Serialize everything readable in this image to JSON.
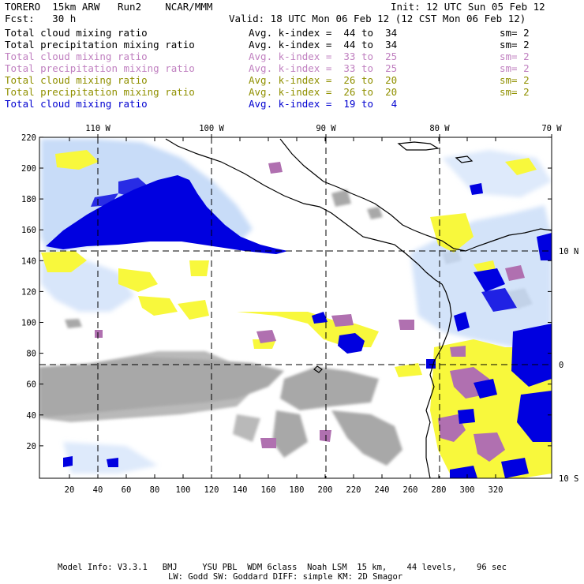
{
  "header": {
    "model": "TORERO  15km ARW   Run2    NCAR/MMM",
    "init": "Init: 12 UTC Sun 05 Feb 12",
    "fcst": "Fcst:   30 h",
    "valid": "Valid: 18 UTC Mon 06 Feb 12 (12 CST Mon 06 Feb 12)"
  },
  "fields": [
    {
      "name": "Total cloud mixing ratio",
      "avg": "Avg. k-index =  44 to  34",
      "sm": "sm= 2",
      "color": "#000000"
    },
    {
      "name": "Total precipitation mixing ratio",
      "avg": "Avg. k-index =  44 to  34",
      "sm": "sm= 2",
      "color": "#000000"
    },
    {
      "name": "Total cloud mixing ratio",
      "avg": "Avg. k-index =  33 to  25",
      "sm": "sm= 2",
      "color": "#c080c0"
    },
    {
      "name": "Total precipitation mixing ratio",
      "avg": "Avg. k-index =  33 to  25",
      "sm": "sm= 2",
      "color": "#c080c0"
    },
    {
      "name": "Total cloud mixing ratio",
      "avg": "Avg. k-index =  26 to  20",
      "sm": "sm= 2",
      "color": "#909000"
    },
    {
      "name": "Total precipitation mixing ratio",
      "avg": "Avg. k-index =  26 to  20",
      "sm": "sm= 2",
      "color": "#909000"
    },
    {
      "name": "Total cloud mixing ratio",
      "avg": "Avg. k-index =  19 to   4",
      "sm": "",
      "color": "#0000d0"
    }
  ],
  "map": {
    "lon_labels": [
      "110 W",
      "100 W",
      "90 W",
      "80 W",
      "70 W"
    ],
    "lat_labels": [
      "10 N",
      "0",
      "10 S"
    ],
    "y_ticks": [
      "220",
      "200",
      "180",
      "160",
      "140",
      "120",
      "100",
      "80",
      "60",
      "40",
      "20"
    ],
    "x_ticks": [
      "20",
      "40",
      "60",
      "80",
      "100",
      "120",
      "140",
      "160",
      "180",
      "200",
      "220",
      "240",
      "260",
      "280",
      "300",
      "320"
    ],
    "colors": {
      "grey_cloud": "#a8a8a8",
      "purple": "#b070b0",
      "yellow": "#f8f83c",
      "light_blue": "#c8dcf8",
      "blue": "#0000e0",
      "grid": "#000000"
    }
  },
  "footer": {
    "line1": "Model Info: V3.3.1   BMJ     YSU PBL  WDM 6class  Noah LSM  15 km,    44 levels,    96 sec",
    "line2": "LW: Godd SW: Goddard DIFF: simple KM: 2D Smagor"
  }
}
